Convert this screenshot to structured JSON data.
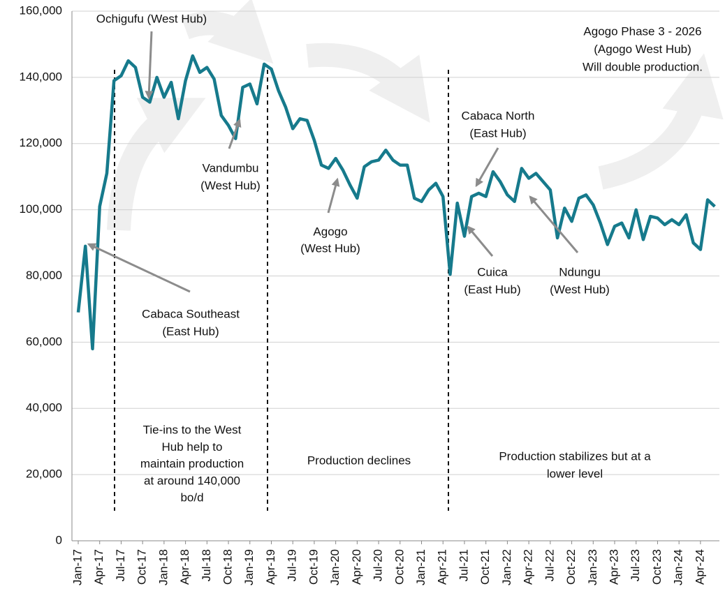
{
  "chart_data": {
    "type": "line",
    "categories": [
      "Jan-17",
      null,
      null,
      "Apr-17",
      null,
      null,
      "Jul-17",
      null,
      null,
      "Oct-17",
      null,
      null,
      "Jan-18",
      null,
      null,
      "Apr-18",
      null,
      null,
      "Jul-18",
      null,
      null,
      "Oct-18",
      null,
      null,
      "Jan-19",
      null,
      null,
      "Apr-19",
      null,
      null,
      "Jul-19",
      null,
      null,
      "Oct-19",
      null,
      null,
      "Jan-20",
      null,
      null,
      "Apr-20",
      null,
      null,
      "Jul-20",
      null,
      null,
      "Oct-20",
      null,
      null,
      "Jan-21",
      null,
      null,
      "Apr-21",
      null,
      null,
      "Jul-21",
      null,
      null,
      "Oct-21",
      null,
      null,
      "Jan-22",
      null,
      null,
      "Apr-22",
      null,
      null,
      "Jul-22",
      null,
      null,
      "Oct-22",
      null,
      null,
      "Jan-23",
      null,
      null,
      "Apr-23",
      null,
      null,
      "Jul-23",
      null,
      null,
      "Oct-23",
      null,
      null,
      "Jan-24",
      null,
      null,
      "Apr-24",
      null,
      null
    ],
    "series": [
      {
        "color": "#167a8c",
        "values": [
          69000,
          89000,
          58000,
          101000,
          111000,
          139000,
          140500,
          145000,
          143000,
          134000,
          132500,
          140000,
          134000,
          138500,
          127500,
          139000,
          146500,
          141500,
          143000,
          139500,
          128500,
          125500,
          121500,
          137000,
          138000,
          132000,
          144000,
          142500,
          136000,
          131000,
          124500,
          127500,
          127000,
          121000,
          113500,
          112500,
          115500,
          112000,
          107500,
          103500,
          113000,
          114500,
          115000,
          118000,
          115000,
          113500,
          113500,
          103500,
          102500,
          106000,
          108000,
          104000,
          80500,
          102000,
          92000,
          104000,
          105000,
          104000,
          111500,
          108500,
          104500,
          102500,
          112500,
          109500,
          111000,
          108500,
          106000,
          91500,
          100500,
          96500,
          103500,
          104500,
          101500,
          96000,
          89500,
          95000,
          96000,
          91500,
          100000,
          91000,
          98000,
          97500,
          95500,
          97000,
          95500,
          98500,
          90000,
          88000,
          103000,
          101000
        ]
      }
    ],
    "ylim": [
      0,
      160000
    ],
    "yticks": [
      0,
      {
        "value": 20000,
        "label": "20,000"
      },
      {
        "value": 40000,
        "label": "40,000"
      },
      {
        "value": 60000,
        "label": "60,000"
      },
      {
        "value": 80000,
        "label": "80,000"
      },
      {
        "value": 100000,
        "label": "100,000"
      },
      {
        "value": 120000,
        "label": "120,000"
      },
      {
        "value": 140000,
        "label": "140,000"
      },
      {
        "value": 160000,
        "label": "160,000"
      }
    ],
    "grid": true,
    "annotations": [
      [
        "Ochigufu (West Hub)"
      ],
      [
        "Agogo Phase 3 - 2026",
        "(Agogo West Hub)",
        "Will double production."
      ],
      [
        "Cabaca North",
        "(East Hub)"
      ],
      [
        "Vandumbu",
        "(West Hub)"
      ],
      [
        "Agogo",
        "(West Hub)"
      ],
      [
        "Cuica",
        "(East Hub)"
      ],
      [
        "Ndungu",
        "(West Hub)"
      ],
      [
        "Cabaca Southeast",
        "(East Hub)"
      ],
      [
        "Tie-ins to the West",
        "Hub help to",
        "maintain production",
        "at around 140,000",
        "bo/d"
      ],
      [
        "Production declines"
      ],
      [
        "Production stabilizes but at a",
        "lower level"
      ]
    ]
  }
}
